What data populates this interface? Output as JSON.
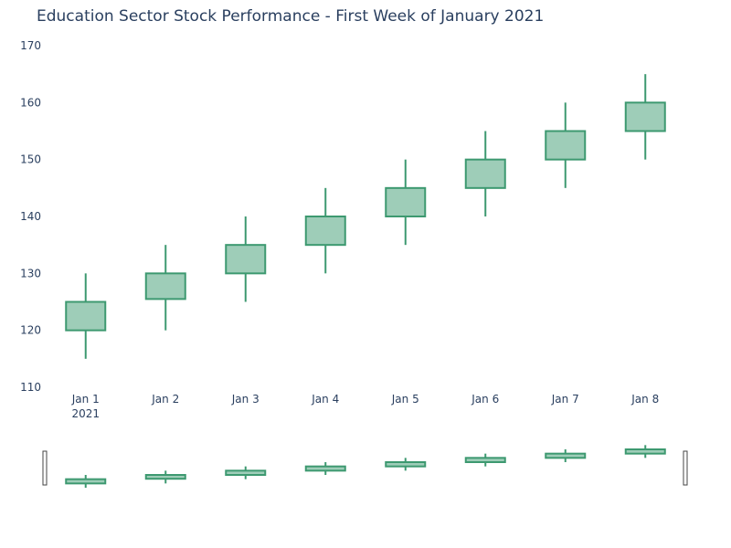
{
  "chart_data": {
    "type": "candlestick",
    "title": "Education Sector Stock Performance - First Week of January 2021",
    "xlabel": "",
    "ylabel": "",
    "categories": [
      "Jan 1",
      "Jan 2",
      "Jan 3",
      "Jan 4",
      "Jan 5",
      "Jan 6",
      "Jan 7",
      "Jan 8"
    ],
    "x_year_label": "2021",
    "open": [
      120,
      125.5,
      130,
      135,
      140,
      145,
      150,
      155
    ],
    "high": [
      130,
      135,
      140,
      145,
      150,
      155,
      160,
      165
    ],
    "low": [
      115,
      120,
      125,
      130,
      135,
      140,
      145,
      150
    ],
    "close": [
      125,
      130,
      135,
      140,
      145,
      150,
      155,
      160
    ],
    "yticks": [
      110,
      120,
      130,
      140,
      150,
      160,
      170
    ],
    "ylim": [
      110,
      170
    ],
    "grid": false,
    "legend": "none",
    "rangeslider": true,
    "colors": {
      "increasing_line": "#3d9970",
      "increasing_fill": "#9ecdb8",
      "text": "#2a3f5f"
    }
  }
}
